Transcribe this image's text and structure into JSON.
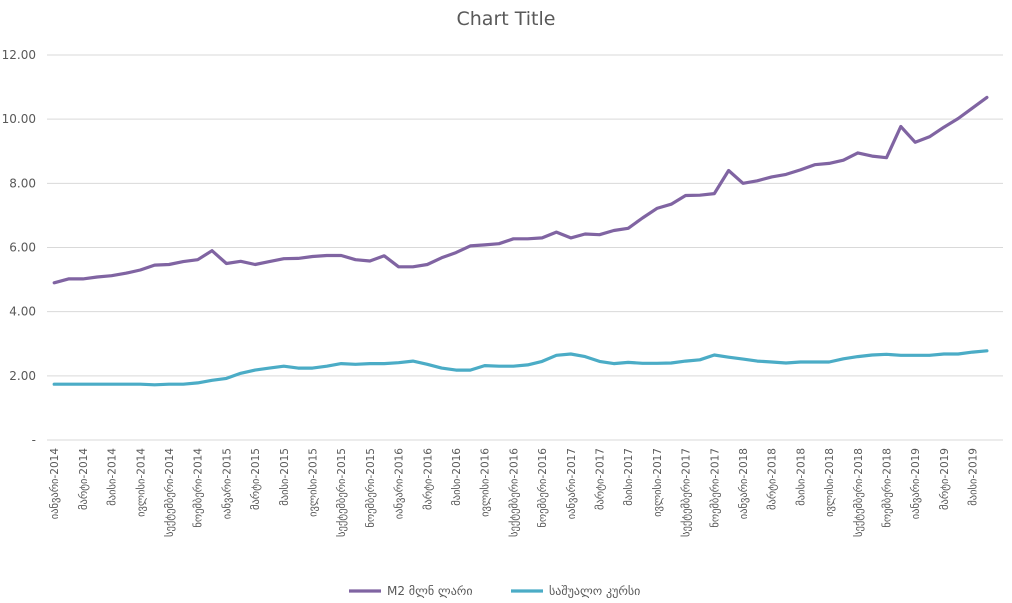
{
  "colors": {
    "m2": "#8064a2",
    "rate": "#4bacc6",
    "grid": "#d9d9d9",
    "text": "#595959"
  },
  "chart_data": {
    "type": "line",
    "title": "Chart Title",
    "xlabel": "",
    "ylabel": "",
    "ylim": [
      0,
      12
    ],
    "y_ticks": [
      "-",
      "2.00",
      "4.00",
      "6.00",
      "8.00",
      "10.00",
      "12.00"
    ],
    "grid": true,
    "legend_position": "bottom",
    "x": [
      "იანვარი-2014",
      "თებერვალი-2014",
      "მარტი-2014",
      "აპრილი-2014",
      "მაისი-2014",
      "ივნისი-2014",
      "ივლისი-2014",
      "აგვისტო-2014",
      "სექტემბერი-2014",
      "ოქტომბერი-2014",
      "ნოემბერი-2014",
      "დეკემბერი-2014",
      "იანვარი-2015",
      "თებერვალი-2015",
      "მარტი-2015",
      "აპრილი-2015",
      "მაისი-2015",
      "ივნისი-2015",
      "ივლისი-2015",
      "აგვისტო-2015",
      "სექტემბერი-2015",
      "ოქტომბერი-2015",
      "ნოემბერი-2015",
      "დეკემბერი-2015",
      "იანვარი-2016",
      "თებერვალი-2016",
      "მარტი-2016",
      "აპრილი-2016",
      "მაისი-2016",
      "ივნისი-2016",
      "ივლისი-2016",
      "აგვისტო-2016",
      "სექტემბერი-2016",
      "ოქტომბერი-2016",
      "ნოემბერი-2016",
      "დეკემბერი-2016",
      "იანვარი-2017",
      "თებერვალი-2017",
      "მარტი-2017",
      "აპრილი-2017",
      "მაისი-2017",
      "ივნისი-2017",
      "ივლისი-2017",
      "აგვისტო-2017",
      "სექტემბერი-2017",
      "ოქტომბერი-2017",
      "ნოემბერი-2017",
      "დეკემბერი-2017",
      "იანვარი-2018",
      "თებერვალი-2018",
      "მარტი-2018",
      "აპრილი-2018",
      "მაისი-2018",
      "ივნისი-2018",
      "ივლისი-2018",
      "აგვისტო-2018",
      "სექტემბერი-2018",
      "ოქტომბერი-2018",
      "ნოემბერი-2018",
      "დეკემბერი-2018",
      "იანვარი-2019",
      "თებერვალი-2019",
      "მარტი-2019",
      "აპრილი-2019",
      "მაისი-2019",
      "ივნისი-2019"
    ],
    "x_tick_labels": [
      "იანვარი-2014",
      "მარტი-2014",
      "მაისი-2014",
      "ივლისი-2014",
      "სექტემბერი-2014",
      "ნოემბერი-2014",
      "იანვარი-2015",
      "მარტი-2015",
      "მაისი-2015",
      "ივლისი-2015",
      "სექტემბერი-2015",
      "ნოემბერი-2015",
      "იანვარი-2016",
      "მარტი-2016",
      "მაისი-2016",
      "ივლისი-2016",
      "სექტემბერი-2016",
      "ნოემბერი-2016",
      "იანვარი-2017",
      "მარტი-2017",
      "მაისი-2017",
      "ივლისი-2017",
      "სექტემბერი-2017",
      "ნოემბერი-2017",
      "იანვარი-2018",
      "მარტი-2018",
      "მაისი-2018",
      "ივლისი-2018",
      "სექტემბერი-2018",
      "ნოემბერი-2018",
      "იანვარი-2019",
      "მარტი-2019",
      "მაისი-2019"
    ],
    "series": [
      {
        "name": "M2 მლნ ლარი",
        "values": [
          4.9,
          5.02,
          5.02,
          5.08,
          5.12,
          5.2,
          5.3,
          5.45,
          5.47,
          5.56,
          5.62,
          5.9,
          5.5,
          5.57,
          5.47,
          5.56,
          5.65,
          5.66,
          5.72,
          5.75,
          5.75,
          5.62,
          5.58,
          5.74,
          5.4,
          5.4,
          5.47,
          5.68,
          5.84,
          6.05,
          6.08,
          6.12,
          6.27,
          6.27,
          6.3,
          6.48,
          6.3,
          6.42,
          6.4,
          6.53,
          6.6,
          6.92,
          7.22,
          7.35,
          7.62,
          7.63,
          7.68,
          8.4,
          8.0,
          8.08,
          8.2,
          8.28,
          8.42,
          8.58,
          8.62,
          8.72,
          8.95,
          8.85,
          8.8,
          9.77,
          9.28,
          9.45,
          9.75,
          10.02,
          10.35,
          10.68
        ]
      },
      {
        "name": "საშუალო კურსი",
        "values": [
          1.74,
          1.74,
          1.74,
          1.74,
          1.74,
          1.74,
          1.74,
          1.72,
          1.74,
          1.74,
          1.78,
          1.86,
          1.92,
          2.08,
          2.18,
          2.24,
          2.3,
          2.24,
          2.24,
          2.3,
          2.38,
          2.36,
          2.38,
          2.38,
          2.41,
          2.46,
          2.36,
          2.24,
          2.18,
          2.18,
          2.32,
          2.3,
          2.3,
          2.34,
          2.45,
          2.64,
          2.68,
          2.6,
          2.45,
          2.38,
          2.42,
          2.39,
          2.39,
          2.4,
          2.46,
          2.5,
          2.65,
          2.58,
          2.52,
          2.46,
          2.43,
          2.4,
          2.43,
          2.43,
          2.43,
          2.53,
          2.6,
          2.65,
          2.67,
          2.64,
          2.64,
          2.64,
          2.68,
          2.68,
          2.74,
          2.78
        ]
      }
    ]
  }
}
